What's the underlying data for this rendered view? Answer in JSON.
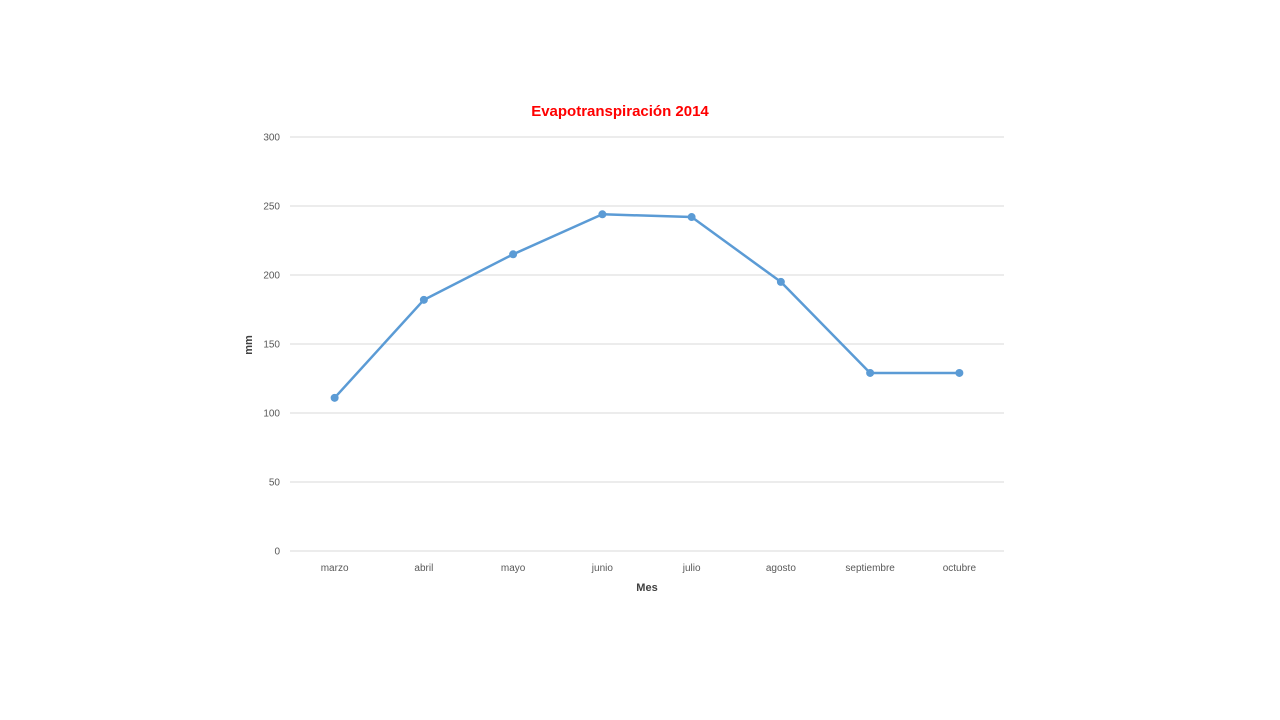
{
  "chart_data": {
    "type": "line",
    "title": "Evapotranspiración 2014",
    "xlabel": "Mes",
    "ylabel": "mm",
    "categories": [
      "marzo",
      "abril",
      "mayo",
      "junio",
      "julio",
      "agosto",
      "septiembre",
      "octubre"
    ],
    "series": [
      {
        "values": [
          111,
          182,
          215,
          244,
          242,
          195,
          129,
          129
        ],
        "color": "#5b9bd5"
      }
    ],
    "ylim": [
      0,
      300
    ],
    "yticks": [
      0,
      50,
      100,
      150,
      200,
      250,
      300
    ],
    "grid": true,
    "legend": "none",
    "markers": true
  }
}
